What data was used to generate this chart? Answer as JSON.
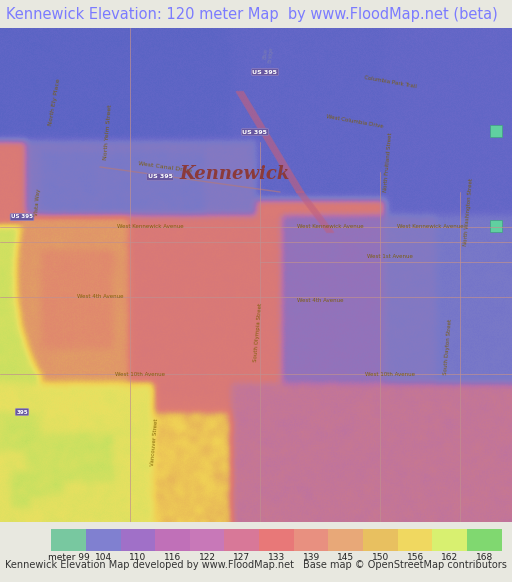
{
  "title": "Kennewick Elevation: 120 meter Map  by www.FloodMap.net (beta)",
  "title_color": "#7b7bff",
  "title_fontsize": 10.5,
  "bg_color": "#e8e8e0",
  "colorbar_values": [
    99,
    104,
    110,
    116,
    122,
    127,
    133,
    139,
    145,
    150,
    156,
    162,
    168
  ],
  "colorbar_colors": [
    "#78c8a0",
    "#8080d0",
    "#a070c8",
    "#c070b8",
    "#c878b8",
    "#d87898",
    "#e87878",
    "#e89080",
    "#e8a878",
    "#e8c060",
    "#f0d860",
    "#d8f070",
    "#80d870"
  ],
  "footer_left": "Kennewick Elevation Map developed by www.FloodMap.net",
  "footer_right": "Base map © OpenStreetMap contributors",
  "footer_fontsize": 7.0,
  "kennewick_label": "Kennewick",
  "kennewick_label_color": "#8b3a3a",
  "street_label_color": "#7a5c00",
  "road_color_dark": "#b06070",
  "road_color_light": "#d0a0a8",
  "us395_bg": "#7060a0",
  "water_deep": "#4a5fc0",
  "water_shallow": "#7070c8"
}
